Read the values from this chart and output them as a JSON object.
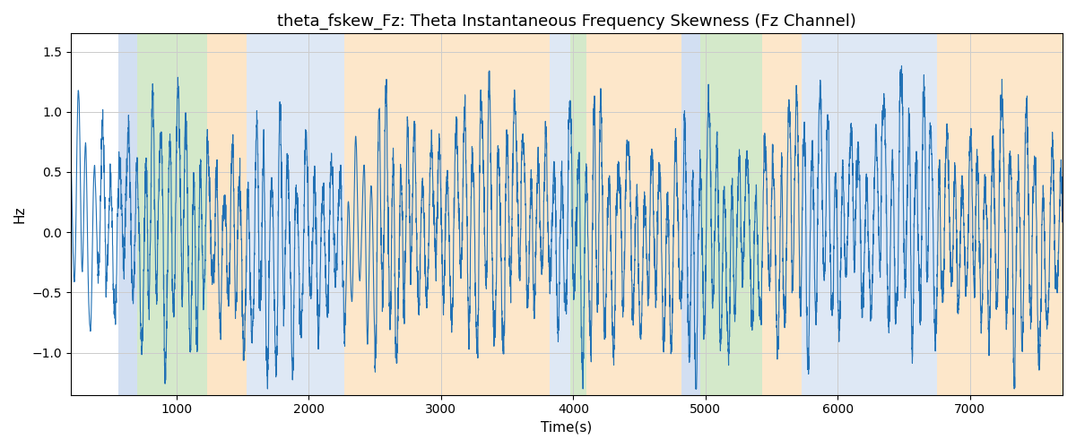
{
  "title": "theta_fskew_Fz: Theta Instantaneous Frequency Skewness (Fz Channel)",
  "xlabel": "Time(s)",
  "ylabel": "Hz",
  "xlim": [
    200,
    7700
  ],
  "ylim": [
    -1.35,
    1.65
  ],
  "line_color": "#2171b5",
  "line_width": 0.8,
  "title_fontsize": 13,
  "label_fontsize": 11,
  "segments": [
    {
      "xmin": 560,
      "xmax": 700,
      "color": "#aec6e8",
      "alpha": 0.55
    },
    {
      "xmin": 700,
      "xmax": 1230,
      "color": "#b2d8a0",
      "alpha": 0.55
    },
    {
      "xmin": 1230,
      "xmax": 1530,
      "color": "#fdd5a0",
      "alpha": 0.6
    },
    {
      "xmin": 1530,
      "xmax": 2270,
      "color": "#aec6e8",
      "alpha": 0.4
    },
    {
      "xmin": 2270,
      "xmax": 2270,
      "color": "#ffffff",
      "alpha": 0.0
    },
    {
      "xmin": 2270,
      "xmax": 3820,
      "color": "#fdd5a0",
      "alpha": 0.55
    },
    {
      "xmin": 3820,
      "xmax": 3980,
      "color": "#aec6e8",
      "alpha": 0.4
    },
    {
      "xmin": 3980,
      "xmax": 4100,
      "color": "#b2d8a0",
      "alpha": 0.55
    },
    {
      "xmin": 4100,
      "xmax": 4820,
      "color": "#fdd5a0",
      "alpha": 0.55
    },
    {
      "xmin": 4820,
      "xmax": 4960,
      "color": "#aec6e8",
      "alpha": 0.55
    },
    {
      "xmin": 4960,
      "xmax": 5430,
      "color": "#b2d8a0",
      "alpha": 0.55
    },
    {
      "xmin": 5430,
      "xmax": 5730,
      "color": "#fdd5a0",
      "alpha": 0.55
    },
    {
      "xmin": 5730,
      "xmax": 6750,
      "color": "#aec6e8",
      "alpha": 0.4
    },
    {
      "xmin": 6750,
      "xmax": 6860,
      "color": "#fdd5a0",
      "alpha": 0.55
    },
    {
      "xmin": 6860,
      "xmax": 7700,
      "color": "#fdd5a0",
      "alpha": 0.55
    }
  ],
  "yticks": [
    -1.0,
    -0.5,
    0.0,
    0.5,
    1.0,
    1.5
  ],
  "xticks": [
    1000,
    2000,
    3000,
    4000,
    5000,
    6000,
    7000
  ],
  "t_start": 200,
  "t_end": 7700,
  "n_points": 7500,
  "seed": 7
}
